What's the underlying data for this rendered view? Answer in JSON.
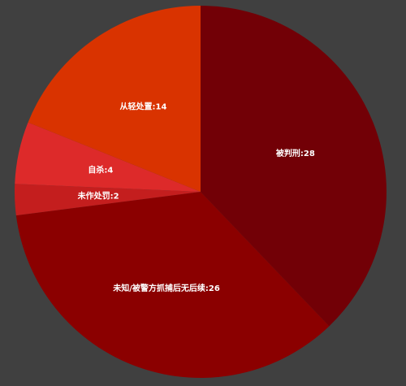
{
  "chart_data": {
    "type": "pie",
    "title": "",
    "start_angle_deg": 0,
    "direction": "clockwise",
    "slices": [
      {
        "label": "被判刑",
        "value": 28,
        "color": "#720006"
      },
      {
        "label": "未知/被警方抓捕后无后续",
        "value": 26,
        "color": "#8b0000"
      },
      {
        "label": "未作处罚",
        "value": 2,
        "color": "#c41e1e"
      },
      {
        "label": "自杀",
        "value": 4,
        "color": "#dd2a2a"
      },
      {
        "label": "从轻处置",
        "value": 14,
        "color": "#d93300"
      }
    ]
  }
}
